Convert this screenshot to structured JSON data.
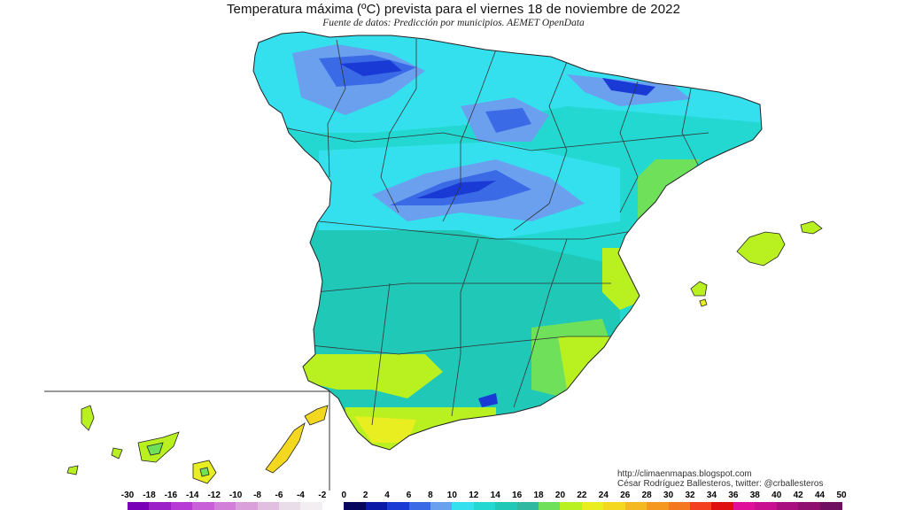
{
  "title": "Temperatura máxima (ºC) prevista para el viernes 18 de noviembre de 2022",
  "subtitle": "Fuente de datos: Predicción por municipios. AEMET OpenData",
  "credits": {
    "url": "http://climaenmapas.blogspot.com",
    "author": "César Rodríguez Ballesteros, twitter: @crballesteros"
  },
  "legend": {
    "labels": [
      "-30",
      "-18",
      "-16",
      "-14",
      "-12",
      "-10",
      "-8",
      "-6",
      "-4",
      "-2",
      "0",
      "2",
      "4",
      "6",
      "8",
      "10",
      "12",
      "14",
      "16",
      "18",
      "20",
      "22",
      "24",
      "26",
      "28",
      "30",
      "32",
      "34",
      "36",
      "38",
      "40",
      "42",
      "44",
      "50"
    ],
    "colors": [
      "#7a00b8",
      "#9b20c8",
      "#b83ad6",
      "#c85ed8",
      "#d27fd9",
      "#d9a0dc",
      "#e0bfe0",
      "#e8dde8",
      "#f2eef2",
      "#ffffff",
      "#06065c",
      "#0a1aa6",
      "#1a3ad6",
      "#3a6ae6",
      "#6aa0ee",
      "#34e0ee",
      "#22d8d0",
      "#20c8b8",
      "#30b8a0",
      "#6ee05a",
      "#b8f020",
      "#e8ee20",
      "#f4d820",
      "#f4b820",
      "#f49820",
      "#f47820",
      "#f44020",
      "#e01010",
      "#e0109a",
      "#c81090",
      "#a81080",
      "#901070",
      "#701060"
    ]
  },
  "map": {
    "main_region": "Península Ibérica y Baleares",
    "inset_region": "Islas Canarias"
  }
}
